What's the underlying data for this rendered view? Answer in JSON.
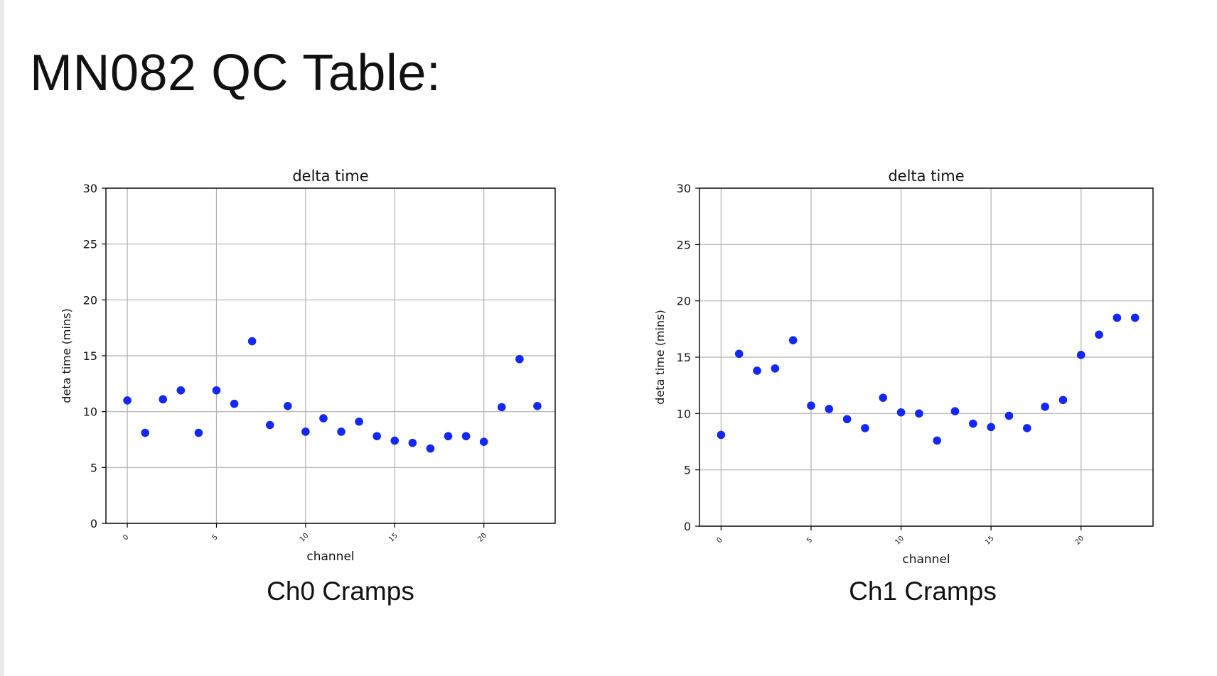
{
  "slide": {
    "title": "MN082 QC Table:"
  },
  "captions": [
    "Ch0 Cramps",
    "Ch1 Cramps"
  ],
  "colors": {
    "marker": "#1428f5",
    "grid": "#b0b0b0",
    "axis": "#000000"
  },
  "chart_data": [
    {
      "type": "scatter",
      "title": "delta time",
      "xlabel": "channel",
      "ylabel": "deta time (mins)",
      "xlim": [
        -1.2,
        24
      ],
      "ylim": [
        0,
        30
      ],
      "xticks": [
        0,
        5,
        10,
        15,
        20
      ],
      "yticks": [
        0,
        5,
        10,
        15,
        20,
        25,
        30
      ],
      "grid": true,
      "x": [
        0,
        1,
        2,
        3,
        4,
        5,
        6,
        7,
        8,
        9,
        10,
        11,
        12,
        13,
        14,
        15,
        16,
        17,
        18,
        19,
        20,
        21,
        22,
        23
      ],
      "y": [
        11.0,
        8.1,
        11.1,
        11.9,
        8.1,
        11.9,
        10.7,
        16.3,
        8.8,
        10.5,
        8.2,
        9.4,
        8.2,
        9.1,
        7.8,
        7.4,
        7.2,
        6.7,
        7.8,
        7.8,
        7.3,
        10.4,
        14.7,
        10.5
      ]
    },
    {
      "type": "scatter",
      "title": "delta time",
      "xlabel": "channel",
      "ylabel": "deta time (mins)",
      "xlim": [
        -1.2,
        24
      ],
      "ylim": [
        0,
        30
      ],
      "xticks": [
        0,
        5,
        10,
        15,
        20
      ],
      "yticks": [
        0,
        5,
        10,
        15,
        20,
        25,
        30
      ],
      "grid": true,
      "x": [
        0,
        1,
        2,
        3,
        4,
        5,
        6,
        7,
        8,
        9,
        10,
        11,
        12,
        13,
        14,
        15,
        16,
        17,
        18,
        19,
        20,
        21,
        22,
        23
      ],
      "y": [
        8.1,
        15.3,
        13.8,
        14.0,
        16.5,
        10.7,
        10.4,
        9.5,
        8.7,
        11.4,
        10.1,
        10.0,
        7.6,
        10.2,
        9.1,
        8.8,
        9.8,
        8.7,
        10.6,
        11.2,
        15.2,
        17.0,
        18.5,
        18.5
      ]
    }
  ]
}
